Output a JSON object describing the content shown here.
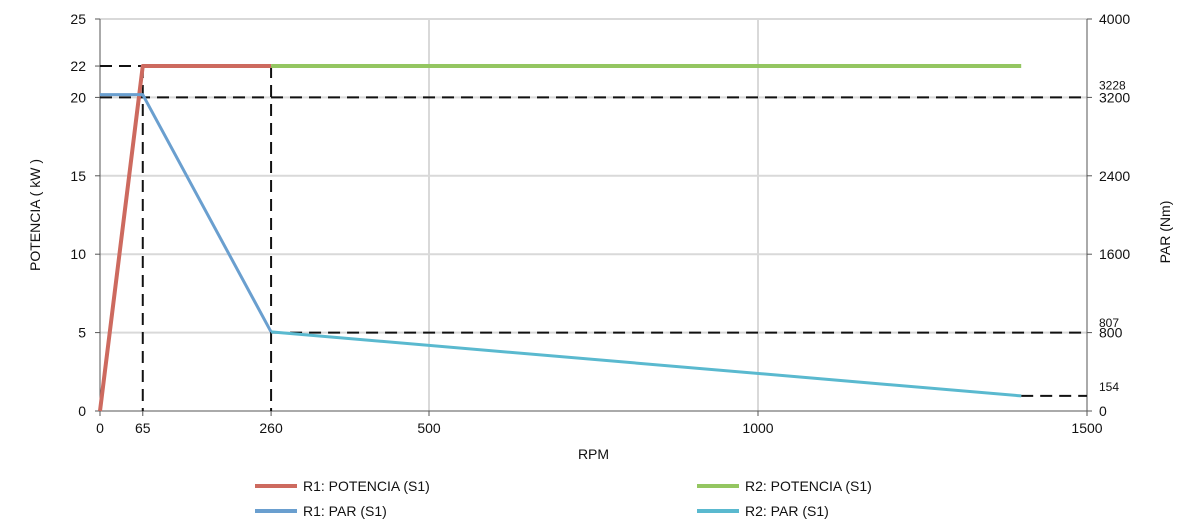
{
  "chart_data": {
    "type": "line",
    "xlabel": "RPM",
    "ylabel_left": "POTENCIA (     kW )",
    "ylabel_right": "PAR (Nm)",
    "xlim": [
      0,
      1500
    ],
    "ylim_left": [
      0,
      25
    ],
    "ylim_right": [
      0,
      4000
    ],
    "x_ticks": [
      "0",
      "65",
      "260",
      "500",
      "1000",
      "1500"
    ],
    "y_left_ticks": [
      "0",
      "5",
      "10",
      "15",
      "20",
      "22",
      "25"
    ],
    "y_right_ticks": [
      "0",
      "154",
      "800",
      "807",
      "1600",
      "2400",
      "3200",
      "3228",
      "4000"
    ],
    "grid": true,
    "legend_position": "bottom",
    "series": [
      {
        "name": "R1: POTENCIA (S1)",
        "axis": "left",
        "color": "#cd6a5f",
        "x": [
          0,
          65,
          260
        ],
        "y": [
          0,
          22,
          22
        ]
      },
      {
        "name": "R2: POTENCIA (S1)",
        "axis": "left",
        "color": "#94c661",
        "x": [
          260,
          1400
        ],
        "y": [
          22,
          22
        ]
      },
      {
        "name": "R1: PAR (S1)",
        "axis": "right",
        "color": "#6a9fcf",
        "x": [
          0,
          65,
          260
        ],
        "y": [
          3228,
          3228,
          807
        ]
      },
      {
        "name": "R2: PAR (S1)",
        "axis": "right",
        "color": "#5ab9cf",
        "x": [
          260,
          1400
        ],
        "y": [
          807,
          154
        ]
      }
    ],
    "reference_lines": [
      {
        "axis": "left",
        "y": 22,
        "x_from": 0,
        "x_to": 65
      },
      {
        "axis": "right",
        "y": 3200,
        "x_from": 0,
        "x_to": 1500
      },
      {
        "axis": "right",
        "y": 800,
        "x_from": 260,
        "x_to": 1500
      },
      {
        "axis": "right",
        "y": 154,
        "x_from": 1400,
        "x_to": 1500
      },
      {
        "axis": "x",
        "x": 65
      },
      {
        "axis": "x",
        "x": 260
      }
    ]
  }
}
